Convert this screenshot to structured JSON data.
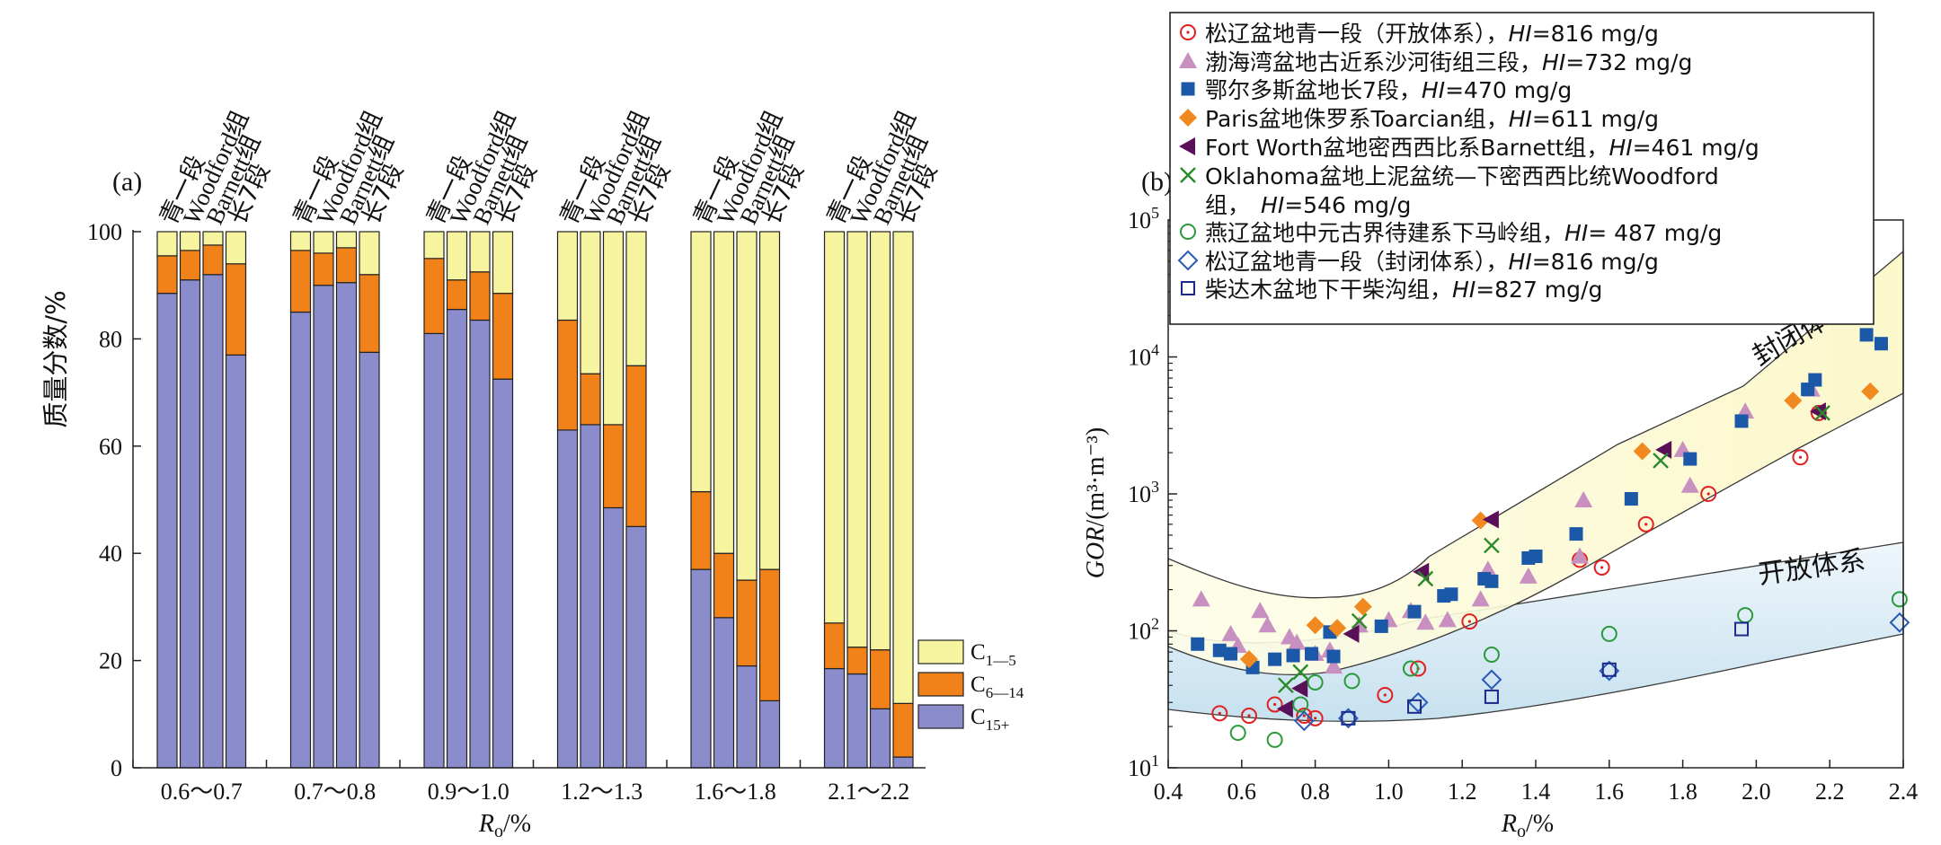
{
  "chart_data": [
    {
      "type": "bar",
      "stacked": true,
      "panel_label": "(a)",
      "ylabel": "质量分数/%",
      "xlabel_main": "R",
      "xlabel_sub": "o",
      "xlabel_unit": "/%",
      "ylim": [
        0,
        100
      ],
      "yticks": [
        "0",
        "20",
        "40",
        "60",
        "80",
        "100"
      ],
      "bar_labels": [
        "青一段",
        "Woodford组",
        "Barnett组",
        "长7段"
      ],
      "groups": [
        {
          "label": "0.6～0.7",
          "c15": [
            88.5,
            91,
            92,
            77
          ],
          "c6": [
            7,
            5.5,
            5.5,
            17
          ]
        },
        {
          "label": "0.7～0.8",
          "c15": [
            85,
            90,
            90.5,
            77.5
          ],
          "c6": [
            11.5,
            6,
            6.5,
            14.5
          ]
        },
        {
          "label": "0.9～1.0",
          "c15": [
            81,
            85.5,
            83.5,
            72.5
          ],
          "c6": [
            14,
            5.5,
            9,
            16
          ]
        },
        {
          "label": "1.2～1.3",
          "c15": [
            63,
            64,
            48.5,
            45
          ],
          "c6": [
            20.5,
            9.5,
            15.5,
            30
          ]
        },
        {
          "label": "1.6～1.8",
          "c15": [
            37,
            28,
            19,
            12.5
          ],
          "c6": [
            14.5,
            12,
            16,
            24.5
          ]
        },
        {
          "label": "2.1～2.2",
          "c15": [
            18.5,
            17.5,
            11,
            2
          ],
          "c6": [
            8.5,
            5,
            11,
            10
          ]
        }
      ],
      "legend": [
        {
          "main": "C",
          "sub": "1—5",
          "color": "#f7f4a0"
        },
        {
          "main": "C",
          "sub": "6—14",
          "color": "#f08219"
        },
        {
          "main": "C",
          "sub": "15+",
          "color": "#8a8ccc"
        }
      ]
    },
    {
      "type": "scatter",
      "panel_label": "(b)",
      "yscale": "log",
      "xlim": [
        0.4,
        2.4
      ],
      "ylim": [
        10,
        100000
      ],
      "xticks": [
        "0.4",
        "0.6",
        "0.8",
        "1.0",
        "1.2",
        "1.4",
        "1.6",
        "1.8",
        "2.0",
        "2.2",
        "2.4"
      ],
      "ylabel_italic": "GOR",
      "ylabel_rest": "/(m³·m⁻³)",
      "xlabel_main": "R",
      "xlabel_sub": "o",
      "xlabel_unit": "/%",
      "region_labels": {
        "closed": "封闭体系",
        "open": "开放体系"
      },
      "series": [
        {
          "name_pre": "松辽盆地青一段（开放体系），",
          "hi": "HI",
          "name_post": "=816 mg/g",
          "marker": "circle-dot",
          "color": "#e02020",
          "points": [
            [
              0.54,
              25
            ],
            [
              0.62,
              24
            ],
            [
              0.69,
              29
            ],
            [
              0.77,
              24
            ],
            [
              0.8,
              23
            ],
            [
              0.99,
              34
            ],
            [
              1.08,
              53
            ],
            [
              1.22,
              117
            ],
            [
              1.52,
              330
            ],
            [
              1.58,
              290
            ],
            [
              1.7,
              600
            ],
            [
              1.87,
              1000
            ],
            [
              2.12,
              1850
            ],
            [
              2.17,
              3900
            ]
          ]
        },
        {
          "name_pre": "渤海湾盆地古近系沙河街组三段，",
          "hi": "HI",
          "name_post": "=732 mg/g",
          "marker": "triangle-up",
          "color": "#c890c0",
          "points": [
            [
              0.49,
              170
            ],
            [
              0.57,
              95
            ],
            [
              0.59,
              78
            ],
            [
              0.65,
              140
            ],
            [
              0.67,
              110
            ],
            [
              0.73,
              90
            ],
            [
              0.75,
              82
            ],
            [
              0.8,
              68
            ],
            [
              0.84,
              72
            ],
            [
              0.85,
              55
            ],
            [
              0.92,
              110
            ],
            [
              1.0,
              120
            ],
            [
              1.06,
              140
            ],
            [
              1.1,
              115
            ],
            [
              1.16,
              120
            ],
            [
              1.25,
              170
            ],
            [
              1.27,
              280
            ],
            [
              1.38,
              250
            ],
            [
              1.52,
              350
            ],
            [
              1.53,
              900
            ],
            [
              1.8,
              2100
            ],
            [
              1.82,
              1150
            ],
            [
              1.97,
              4000
            ],
            [
              2.15,
              5800
            ]
          ]
        },
        {
          "name_pre": "鄂尔多斯盆地长7段，",
          "hi": "HI",
          "name_post": "=470 mg/g",
          "marker": "square-filled",
          "color": "#1b58a8",
          "points": [
            [
              0.48,
              80
            ],
            [
              0.54,
              72
            ],
            [
              0.57,
              68
            ],
            [
              0.63,
              54
            ],
            [
              0.69,
              62
            ],
            [
              0.74,
              66
            ],
            [
              0.79,
              68
            ],
            [
              0.84,
              98
            ],
            [
              0.85,
              65
            ],
            [
              0.98,
              108
            ],
            [
              1.07,
              138
            ],
            [
              1.15,
              180
            ],
            [
              1.17,
              185
            ],
            [
              1.26,
              240
            ],
            [
              1.28,
              230
            ],
            [
              1.38,
              340
            ],
            [
              1.4,
              350
            ],
            [
              1.51,
              510
            ],
            [
              1.66,
              920
            ],
            [
              1.82,
              1800
            ],
            [
              1.96,
              3400
            ],
            [
              2.14,
              5800
            ],
            [
              2.16,
              6800
            ],
            [
              2.3,
              14500
            ],
            [
              2.34,
              12500
            ]
          ]
        },
        {
          "name_pre": "Paris盆地侏罗系Toarcian组，",
          "hi": "HI",
          "name_post": "=611 mg/g",
          "marker": "diamond-filled",
          "color": "#f08a20",
          "points": [
            [
              0.62,
              62
            ],
            [
              0.8,
              110
            ],
            [
              0.86,
              105
            ],
            [
              0.93,
              150
            ],
            [
              1.25,
              640
            ],
            [
              1.69,
              2050
            ],
            [
              2.1,
              4800
            ],
            [
              2.31,
              5600
            ]
          ]
        },
        {
          "name_pre": "Fort Worth盆地密西西比系Barnett组，",
          "hi": "HI",
          "name_post": "=461 mg/g",
          "marker": "triangle-left",
          "color": "#5a1058",
          "points": [
            [
              0.72,
              27
            ],
            [
              0.76,
              38
            ],
            [
              0.9,
              95
            ],
            [
              1.09,
              270
            ],
            [
              1.28,
              650
            ],
            [
              1.75,
              2100
            ],
            [
              2.17,
              4000
            ]
          ]
        },
        {
          "name_pre": "Oklahoma盆地上泥盆统—下密西西比统Woodford组，",
          "hi": "HI",
          "name_post": "=546 mg/g",
          "marker": "x",
          "color": "#2a8a2a",
          "points": [
            [
              0.72,
              40
            ],
            [
              0.76,
              50
            ],
            [
              0.92,
              118
            ],
            [
              1.1,
              240
            ],
            [
              1.28,
              420
            ],
            [
              1.74,
              1750
            ],
            [
              2.18,
              3900
            ]
          ]
        },
        {
          "name_pre": "燕辽盆地中元古界待建系下马岭组，",
          "hi": "HI",
          "name_post": "= 487 mg/g",
          "marker": "circle-open",
          "color": "#2a9a3a",
          "points": [
            [
              0.59,
              18
            ],
            [
              0.69,
              16
            ],
            [
              0.76,
              29
            ],
            [
              0.8,
              42
            ],
            [
              0.9,
              43
            ],
            [
              1.06,
              53
            ],
            [
              1.28,
              67
            ],
            [
              1.6,
              95
            ],
            [
              1.97,
              130
            ],
            [
              2.39,
              170
            ]
          ]
        },
        {
          "name_pre": "松辽盆地青一段（封闭体系），",
          "hi": "HI",
          "name_post": "=816 mg/g",
          "marker": "diamond-open",
          "color": "#2a5ab8",
          "points": [
            [
              0.77,
              22
            ],
            [
              0.89,
              23
            ],
            [
              1.08,
              30
            ],
            [
              1.28,
              44
            ],
            [
              1.6,
              51
            ],
            [
              2.39,
              115
            ]
          ]
        },
        {
          "name_pre": "柴达木盆地下干柴沟组，",
          "hi": "HI",
          "name_post": "=827 mg/g",
          "marker": "square-open",
          "color": "#1a2a8a",
          "points": [
            [
              0.89,
              23
            ],
            [
              1.07,
              28
            ],
            [
              1.28,
              33
            ],
            [
              1.6,
              52
            ],
            [
              1.96,
              103
            ]
          ]
        }
      ]
    }
  ]
}
